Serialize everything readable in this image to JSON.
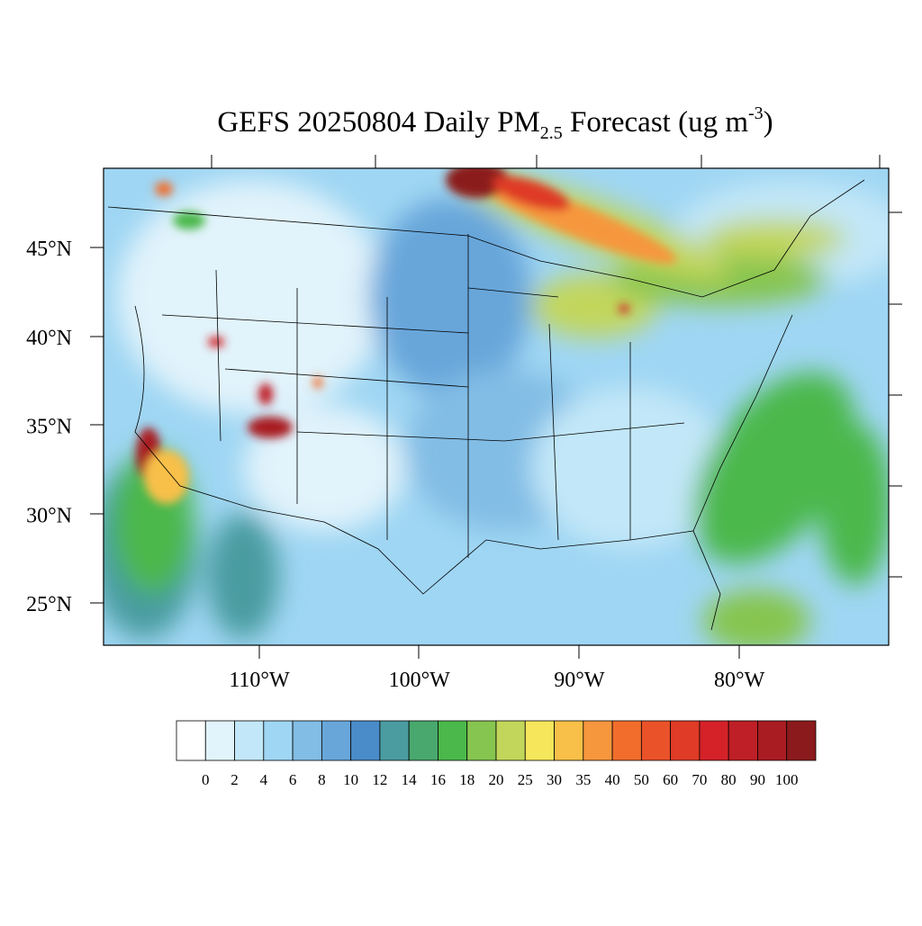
{
  "title": {
    "text": "GEFS 20250804 Daily PM",
    "sub": "2.5",
    "after": " Forecast (ug m",
    "sup": "-3",
    "end": ")"
  },
  "lat_labels": [
    "45°N",
    "40°N",
    "35°N",
    "30°N",
    "25°N"
  ],
  "lon_labels": [
    "110°W",
    "100°W",
    "90°W",
    "80°W"
  ],
  "colorbar": {
    "labels": [
      0,
      2,
      4,
      6,
      8,
      10,
      12,
      14,
      16,
      18,
      20,
      25,
      30,
      35,
      40,
      50,
      60,
      70,
      80,
      90,
      100
    ],
    "colors": [
      "#ffffff",
      "#e1f3fb",
      "#c2e7f8",
      "#9fd6f3",
      "#82bde5",
      "#68a6da",
      "#4a8bc9",
      "#4a9ca0",
      "#49a86e",
      "#4bb84b",
      "#86c54f",
      "#c2d65b",
      "#f6e65b",
      "#f8c048",
      "#f6973d",
      "#f26d2c",
      "#ea522a",
      "#df3b27",
      "#d42228",
      "#bf1f26",
      "#a91c22",
      "#8b1a1c"
    ]
  }
}
